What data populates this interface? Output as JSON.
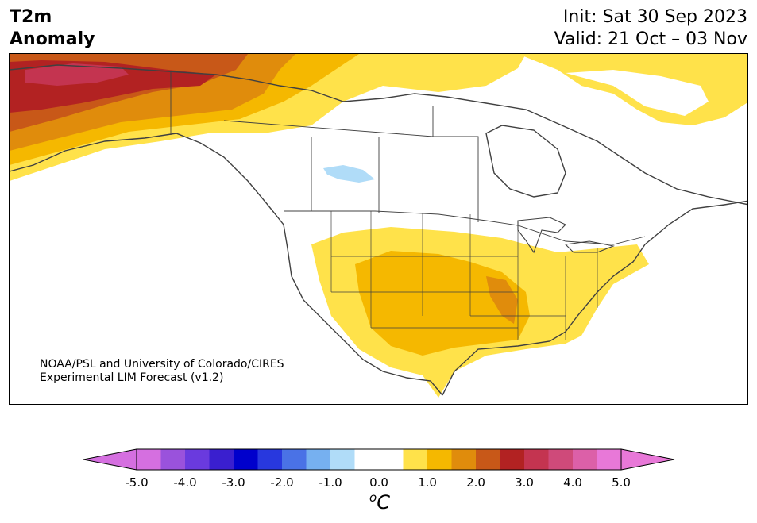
{
  "header": {
    "title_line1": "T2m",
    "title_line2": "Anomaly",
    "init_line": "Init: Sat 30 Sep 2023",
    "valid_line": "Valid: 21 Oct – 03 Nov"
  },
  "map": {
    "region": "North America",
    "credit_line1": "NOAA/PSL and University of Colorado/CIRES",
    "credit_line2": "Experimental LIM Forecast (v1.2)",
    "colors": {
      "land_outline": "#404040",
      "plus_0_5_to_1": "#ffe24a",
      "plus_1_to_1_5": "#f5b800",
      "plus_1_5_to_2": "#e08c0c",
      "plus_2_to_2_5": "#c85818",
      "plus_2_5_to_3": "#b22222",
      "plus_3_to_3_5": "#c43450",
      "minus_0_5_to_1": "#b0dcf8"
    }
  },
  "colorbar": {
    "unit_base": "C",
    "unit_sup": "o",
    "bins": [
      {
        "color": "#d56fe0"
      },
      {
        "color": "#9a52dc"
      },
      {
        "color": "#6a3ade"
      },
      {
        "color": "#3a1fcf"
      },
      {
        "color": "#0000cc"
      },
      {
        "color": "#2838de"
      },
      {
        "color": "#4a72e6"
      },
      {
        "color": "#76b0f0"
      },
      {
        "color": "#b0dcf8"
      },
      {
        "color": "#ffffff"
      },
      {
        "color": "#ffffff"
      },
      {
        "color": "#ffe24a"
      },
      {
        "color": "#f5b800"
      },
      {
        "color": "#e08c0c"
      },
      {
        "color": "#c85818"
      },
      {
        "color": "#b22222"
      },
      {
        "color": "#c43450"
      },
      {
        "color": "#cf4a7a"
      },
      {
        "color": "#dc60a8"
      },
      {
        "color": "#e878d8"
      }
    ],
    "under_color": "#d56fe0",
    "over_color": "#e878d8",
    "tick_values": [
      -5.0,
      -4.0,
      -3.0,
      -2.0,
      -1.0,
      0.0,
      1.0,
      2.0,
      3.0,
      4.0,
      5.0
    ],
    "tick_labels": [
      "-5.0",
      "-4.0",
      "-3.0",
      "-2.0",
      "-1.0",
      "0.0",
      "1.0",
      "2.0",
      "3.0",
      "4.0",
      "5.0"
    ]
  }
}
